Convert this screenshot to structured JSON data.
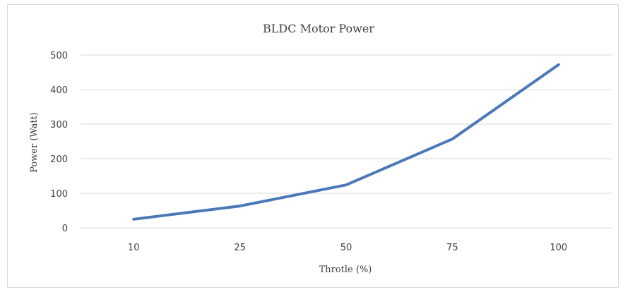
{
  "chart_data": {
    "type": "line",
    "title": "BLDC Motor Power",
    "xlabel": "Throtle (%)",
    "ylabel": "Power (Watt)",
    "categories": [
      "10",
      "25",
      "50",
      "75",
      "100"
    ],
    "series": [
      {
        "values": [
          25,
          63,
          124,
          257,
          472
        ]
      }
    ],
    "ylim": [
      0,
      500
    ],
    "yticks": [
      "0",
      "100",
      "200",
      "300",
      "400",
      "500"
    ],
    "grid": true,
    "legend": "none",
    "line_color": "#4a78b8"
  }
}
